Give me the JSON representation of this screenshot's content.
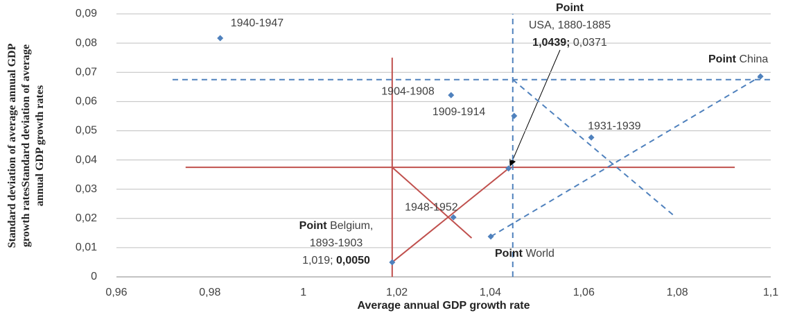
{
  "chart_data": {
    "type": "scatter",
    "x_label": "Average annual GDP growth rate",
    "y_label": [
      "Standard deviation of average annual GDP",
      "growth ratesStandard deviation of average",
      "annual GDP growth rates"
    ],
    "xlim": [
      0.96,
      1.1
    ],
    "ylim": [
      0,
      0.09
    ],
    "xticks": [
      {
        "value": 0.96,
        "label": "0,96"
      },
      {
        "value": 0.98,
        "label": "0,98"
      },
      1,
      {
        "value": 1.02,
        "label": "1,02"
      },
      {
        "value": 1.04,
        "label": "1,04"
      },
      {
        "value": 1.06,
        "label": "1,06"
      },
      {
        "value": 1.08,
        "label": "1,08"
      },
      {
        "value": 1.1,
        "label": "1,1"
      }
    ],
    "yticks": [
      0,
      {
        "value": 0.01,
        "label": "0,01"
      },
      {
        "value": 0.02,
        "label": "0,02"
      },
      {
        "value": 0.03,
        "label": "0,03"
      },
      {
        "value": 0.04,
        "label": "0,04"
      },
      {
        "value": 0.05,
        "label": "0,05"
      },
      {
        "value": 0.06,
        "label": "0,06"
      },
      {
        "value": 0.07,
        "label": "0,07"
      },
      {
        "value": 0.08,
        "label": "0,08"
      },
      {
        "value": 0.09,
        "label": "0,09"
      }
    ],
    "grid": true,
    "color": "#4f81bd",
    "x": [
      0.9822,
      1.0316,
      1.0451,
      1.0616,
      1.0321,
      1.0401,
      1.0978,
      1.0439,
      1.019
    ],
    "y": [
      0.0817,
      0.0622,
      0.0551,
      0.0477,
      0.0204,
      0.0138,
      0.0686,
      0.0371,
      0.005
    ],
    "labels": [
      "1940-1947",
      "1904-1908",
      "1909-1914",
      "1931-1939",
      "1948-1952",
      null,
      null,
      null,
      null
    ],
    "annotations": [
      {
        "lines": [
          [
            {
              "text": "Point",
              "bold": true
            }
          ],
          [
            {
              "text": "USA, 1880-1885",
              "bold": false
            }
          ],
          [
            {
              "text": "1,0439;",
              "bold": true
            },
            {
              "text": " 0,0371",
              "bold": false
            }
          ]
        ]
      },
      {
        "lines": [
          [
            {
              "text": "Point",
              "bold": true
            },
            {
              "text": " Belgium,",
              "bold": false
            }
          ],
          [
            {
              "text": "1893-1903",
              "bold": false
            }
          ],
          [
            {
              "text": "1,019; ",
              "bold": false
            },
            {
              "text": "0,0050",
              "bold": true
            }
          ]
        ]
      },
      {
        "lines": [
          [
            {
              "text": "Point",
              "bold": true
            },
            {
              "text": " China",
              "bold": false
            }
          ]
        ]
      },
      {
        "lines": [
          [
            {
              "text": "Point",
              "bold": true
            },
            {
              "text": " World",
              "bold": false
            }
          ]
        ]
      }
    ],
    "reference_lines": [
      {
        "x": [
          1.019,
          1.019
        ],
        "y": [
          0,
          0.075
        ],
        "color": "#c0504d",
        "dashed": false
      },
      {
        "x": [
          0.9748,
          1.0923
        ],
        "y": [
          0.0375,
          0.0375
        ],
        "color": "#c0504d",
        "dashed": false
      },
      {
        "x": [
          1.019,
          1.0439
        ],
        "y": [
          0.005,
          0.0371
        ],
        "color": "#c0504d",
        "dashed": false
      },
      {
        "x": [
          1.019,
          1.036
        ],
        "y": [
          0.0375,
          0.0133
        ],
        "color": "#c0504d",
        "dashed": false
      },
      {
        "x": [
          0.972,
          1.1
        ],
        "y": [
          0.0675,
          0.0675
        ],
        "color": "#4f81bd",
        "dashed": true
      },
      {
        "x": [
          1.0448,
          1.0448
        ],
        "y": [
          0,
          0.09
        ],
        "color": "#4f81bd",
        "dashed": true
      },
      {
        "x": [
          1.0401,
          1.0978
        ],
        "y": [
          0.0138,
          0.0686
        ],
        "color": "#4f81bd",
        "dashed": true
      },
      {
        "x": [
          1.0448,
          1.0797
        ],
        "y": [
          0.0675,
          0.0204
        ],
        "color": "#4f81bd",
        "dashed": true
      }
    ]
  }
}
